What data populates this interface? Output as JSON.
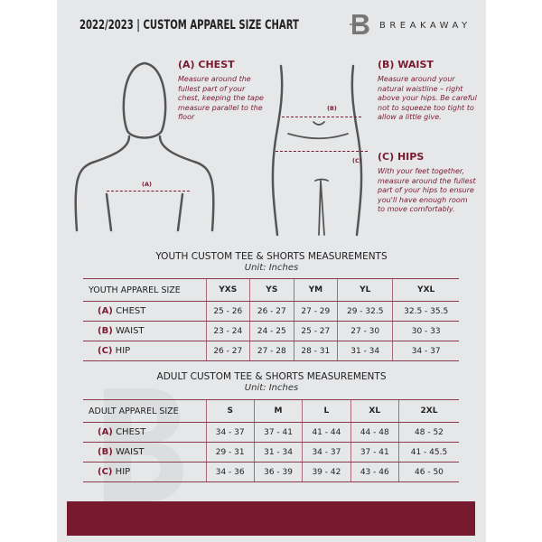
{
  "header": {
    "title": "2022/2023  |  CUSTOM APPAREL SIZE CHART",
    "brand": "BREAKAWAY",
    "logo_letter": "B"
  },
  "measurements": {
    "chest": {
      "heading": "(A) CHEST",
      "text": "Measure around the fullest part of your chest, keeping the tape measure parallel to the floor",
      "marker": "(A)"
    },
    "waist": {
      "heading": "(B) WAIST",
      "text": "Measure around your natural waistline – right above your hips. Be careful not to squeeze too tight to allow a little give.",
      "marker": "(B)"
    },
    "hips": {
      "heading": "(C) HIPS",
      "text": "With your feet together, measure around the fullest part of your hips to ensure you'll have enough room to move comfortably.",
      "marker": "(C)"
    }
  },
  "youth": {
    "title": "YOUTH CUSTOM TEE & SHORTS MEASUREMENTS",
    "unit": "Unit: Inches",
    "header": [
      "YOUTH APPAREL SIZE",
      "YXS",
      "YS",
      "YM",
      "YL",
      "YXL"
    ],
    "rows": [
      {
        "key": "(A)",
        "label": "CHEST",
        "values": [
          "25 - 26",
          "26 - 27",
          "27 - 29",
          "29 - 32.5",
          "32.5 - 35.5"
        ]
      },
      {
        "key": "(B)",
        "label": "WAIST",
        "values": [
          "23 - 24",
          "24 - 25",
          "25 - 27",
          "27 - 30",
          "30 - 33"
        ]
      },
      {
        "key": "(C)",
        "label": "HIP",
        "values": [
          "26 - 27",
          "27 - 28",
          "28 - 31",
          "31 - 34",
          "34 - 37"
        ]
      }
    ]
  },
  "adult": {
    "title": "ADULT CUSTOM TEE & SHORTS MEASUREMENTS",
    "unit": "Unit: Inches",
    "header": [
      "ADULT APPAREL SIZE",
      "S",
      "M",
      "L",
      "XL",
      "2XL"
    ],
    "rows": [
      {
        "key": "(A)",
        "label": "CHEST",
        "values": [
          "34 - 37",
          "37 - 41",
          "41 - 44",
          "44 - 48",
          "48 - 52"
        ]
      },
      {
        "key": "(B)",
        "label": "WAIST",
        "values": [
          "29 - 31",
          "31 - 34",
          "34 - 37",
          "37 - 41",
          "41 - 45.5"
        ]
      },
      {
        "key": "(C)",
        "label": "HIP",
        "values": [
          "34 - 36",
          "36 - 39",
          "39 - 42",
          "43 - 46",
          "46 - 50"
        ]
      }
    ]
  },
  "colors": {
    "accent": "#771a30",
    "background": "#e6e7e9"
  }
}
